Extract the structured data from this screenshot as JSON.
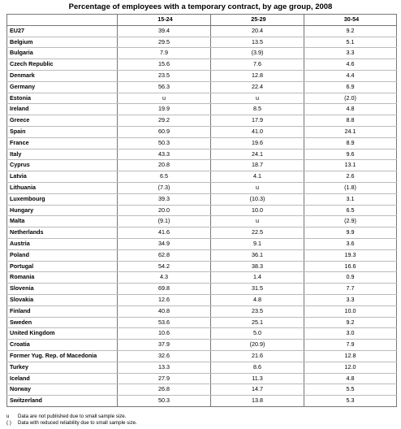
{
  "title": "Percentage of employees with a temporary contract, by age group, 2008",
  "columns": [
    "",
    "15-24",
    "25-29",
    "30-54"
  ],
  "rows": [
    {
      "country": "EU27",
      "v1": "39.4",
      "v2": "20.4",
      "v3": "9.2"
    },
    {
      "country": "Belgium",
      "v1": "29.5",
      "v2": "13.5",
      "v3": "5.1"
    },
    {
      "country": "Bulgaria",
      "v1": "7.9",
      "v2": "(3.9)",
      "v3": "3.3"
    },
    {
      "country": "Czech Republic",
      "v1": "15.6",
      "v2": "7.6",
      "v3": "4.6"
    },
    {
      "country": "Denmark",
      "v1": "23.5",
      "v2": "12.8",
      "v3": "4.4"
    },
    {
      "country": "Germany",
      "v1": "56.3",
      "v2": "22.4",
      "v3": "6.9"
    },
    {
      "country": "Estonia",
      "v1": "u",
      "v2": "u",
      "v3": "(2.0)"
    },
    {
      "country": "Ireland",
      "v1": "19.9",
      "v2": "8.5",
      "v3": "4.8"
    },
    {
      "country": "Greece",
      "v1": "29.2",
      "v2": "17.9",
      "v3": "8.8"
    },
    {
      "country": "Spain",
      "v1": "60.9",
      "v2": "41.0",
      "v3": "24.1"
    },
    {
      "country": "France",
      "v1": "50.3",
      "v2": "19.6",
      "v3": "8.9"
    },
    {
      "country": "Italy",
      "v1": "43.3",
      "v2": "24.1",
      "v3": "9.6"
    },
    {
      "country": "Cyprus",
      "v1": "20.8",
      "v2": "18.7",
      "v3": "13.1"
    },
    {
      "country": "Latvia",
      "v1": "6.5",
      "v2": "4.1",
      "v3": "2.6"
    },
    {
      "country": "Lithuania",
      "v1": "(7.3)",
      "v2": "u",
      "v3": "(1.8)"
    },
    {
      "country": "Luxembourg",
      "v1": "39.3",
      "v2": "(10.3)",
      "v3": "3.1"
    },
    {
      "country": "Hungary",
      "v1": "20.0",
      "v2": "10.0",
      "v3": "6.5"
    },
    {
      "country": "Malta",
      "v1": "(9.1)",
      "v2": "u",
      "v3": "(2.9)"
    },
    {
      "country": "Netherlands",
      "v1": "41.6",
      "v2": "22.5",
      "v3": "9.9"
    },
    {
      "country": "Austria",
      "v1": "34.9",
      "v2": "9.1",
      "v3": "3.6"
    },
    {
      "country": "Poland",
      "v1": "62.8",
      "v2": "36.1",
      "v3": "19.3"
    },
    {
      "country": "Portugal",
      "v1": "54.2",
      "v2": "38.3",
      "v3": "16.6"
    },
    {
      "country": "Romania",
      "v1": "4.3",
      "v2": "1.4",
      "v3": "0.9"
    },
    {
      "country": "Slovenia",
      "v1": "69.8",
      "v2": "31.5",
      "v3": "7.7"
    },
    {
      "country": "Slovakia",
      "v1": "12.6",
      "v2": "4.8",
      "v3": "3.3"
    },
    {
      "country": "Finland",
      "v1": "40.8",
      "v2": "23.5",
      "v3": "10.0"
    },
    {
      "country": "Sweden",
      "v1": "53.6",
      "v2": "25.1",
      "v3": "9.2"
    },
    {
      "country": "United Kingdom",
      "v1": "10.6",
      "v2": "5.0",
      "v3": "3.0"
    },
    {
      "country": "Croatia",
      "v1": "37.9",
      "v2": "(20.9)",
      "v3": "7.9"
    },
    {
      "country": "Former Yug. Rep. of Macedonia",
      "v1": "32.6",
      "v2": "21.6",
      "v3": "12.8"
    },
    {
      "country": "Turkey",
      "v1": "13.3",
      "v2": "8.6",
      "v3": "12.0"
    },
    {
      "country": "Iceland",
      "v1": "27.9",
      "v2": "11.3",
      "v3": "4.8"
    },
    {
      "country": "Norway",
      "v1": "26.8",
      "v2": "14.7",
      "v3": "5.5"
    },
    {
      "country": "Switzerland",
      "v1": "50.3",
      "v2": "13.8",
      "v3": "5.3"
    }
  ],
  "notes": [
    {
      "symbol": "u",
      "text": "Data are not published due to small sample size."
    },
    {
      "symbol": "( )",
      "text": "Data with reduced reliability due to small sample size."
    }
  ]
}
